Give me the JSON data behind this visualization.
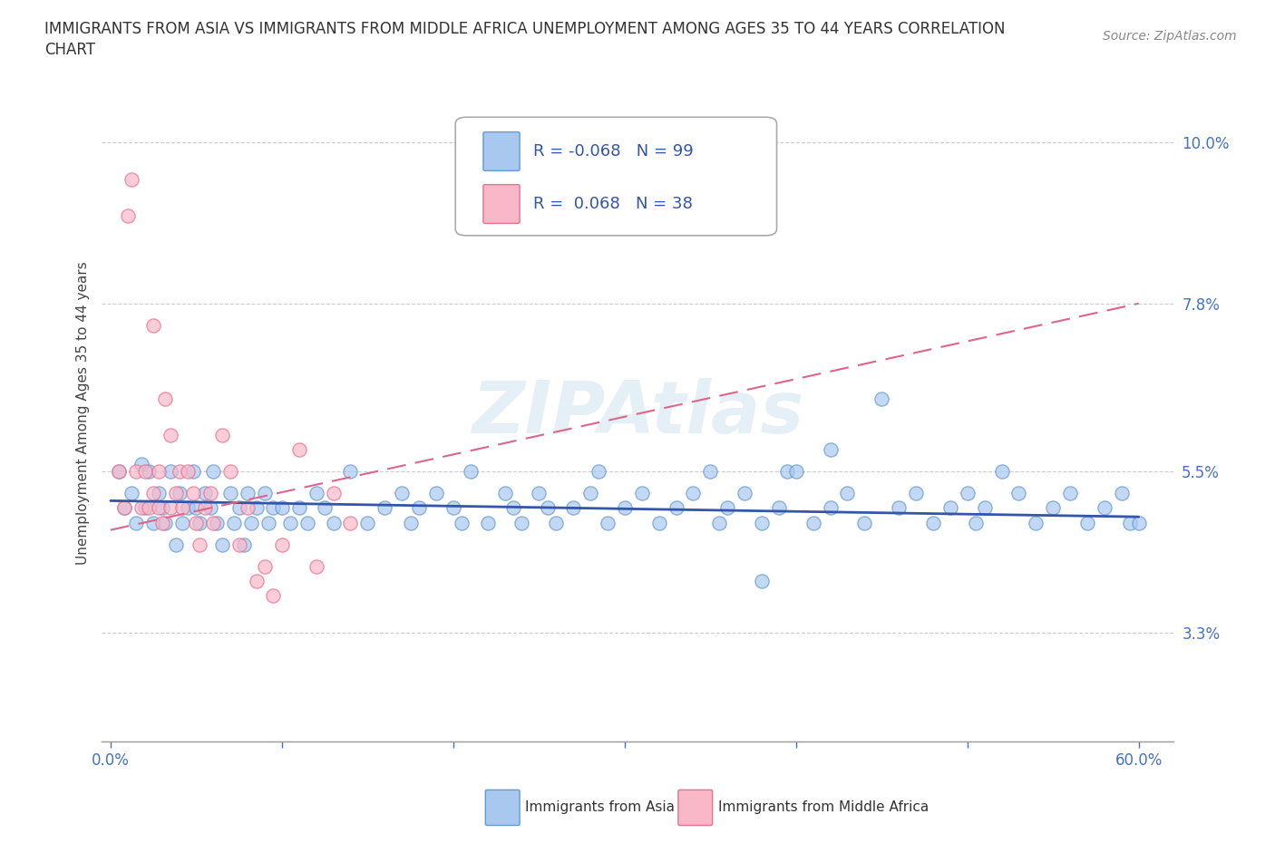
{
  "title_line1": "IMMIGRANTS FROM ASIA VS IMMIGRANTS FROM MIDDLE AFRICA UNEMPLOYMENT AMONG AGES 35 TO 44 YEARS CORRELATION",
  "title_line2": "CHART",
  "source": "Source: ZipAtlas.com",
  "ylabel": "Unemployment Among Ages 35 to 44 years",
  "xlim": [
    -0.005,
    0.62
  ],
  "ylim": [
    0.018,
    0.108
  ],
  "yticks": [
    0.033,
    0.055,
    0.078,
    0.1
  ],
  "ytick_labels": [
    "3.3%",
    "5.5%",
    "7.8%",
    "10.0%"
  ],
  "xticks": [
    0.0,
    0.1,
    0.2,
    0.3,
    0.4,
    0.5,
    0.6
  ],
  "color_asia": "#A8C8F0",
  "color_asia_edge": "#6699CC",
  "color_africa": "#F8B8C8",
  "color_africa_edge": "#E87090",
  "line_color_asia": "#3355AA",
  "line_color_africa": "#DD6688",
  "R_asia": -0.068,
  "N_asia": 99,
  "R_africa": 0.068,
  "N_africa": 38,
  "legend_label_asia": "Immigrants from Asia",
  "legend_label_africa": "Immigrants from Middle Africa",
  "watermark": "ZIPAtlas",
  "asia_x": [
    0.005,
    0.008,
    0.012,
    0.015,
    0.018,
    0.02,
    0.022,
    0.025,
    0.028,
    0.03,
    0.032,
    0.035,
    0.038,
    0.04,
    0.042,
    0.045,
    0.048,
    0.05,
    0.052,
    0.055,
    0.058,
    0.06,
    0.062,
    0.065,
    0.07,
    0.072,
    0.075,
    0.078,
    0.08,
    0.082,
    0.085,
    0.09,
    0.092,
    0.095,
    0.1,
    0.105,
    0.11,
    0.115,
    0.12,
    0.125,
    0.13,
    0.14,
    0.15,
    0.16,
    0.17,
    0.175,
    0.18,
    0.19,
    0.2,
    0.205,
    0.21,
    0.22,
    0.23,
    0.235,
    0.24,
    0.25,
    0.255,
    0.26,
    0.27,
    0.28,
    0.285,
    0.29,
    0.3,
    0.31,
    0.32,
    0.33,
    0.34,
    0.35,
    0.355,
    0.36,
    0.37,
    0.38,
    0.39,
    0.395,
    0.4,
    0.41,
    0.42,
    0.43,
    0.44,
    0.45,
    0.46,
    0.47,
    0.48,
    0.49,
    0.5,
    0.505,
    0.51,
    0.52,
    0.53,
    0.54,
    0.55,
    0.56,
    0.57,
    0.58,
    0.59,
    0.595,
    0.6,
    0.38,
    0.42
  ],
  "asia_y": [
    0.055,
    0.05,
    0.052,
    0.048,
    0.056,
    0.05,
    0.055,
    0.048,
    0.052,
    0.05,
    0.048,
    0.055,
    0.045,
    0.052,
    0.048,
    0.05,
    0.055,
    0.05,
    0.048,
    0.052,
    0.05,
    0.055,
    0.048,
    0.045,
    0.052,
    0.048,
    0.05,
    0.045,
    0.052,
    0.048,
    0.05,
    0.052,
    0.048,
    0.05,
    0.05,
    0.048,
    0.05,
    0.048,
    0.052,
    0.05,
    0.048,
    0.055,
    0.048,
    0.05,
    0.052,
    0.048,
    0.05,
    0.052,
    0.05,
    0.048,
    0.055,
    0.048,
    0.052,
    0.05,
    0.048,
    0.052,
    0.05,
    0.048,
    0.05,
    0.052,
    0.055,
    0.048,
    0.05,
    0.052,
    0.048,
    0.05,
    0.052,
    0.055,
    0.048,
    0.05,
    0.052,
    0.048,
    0.05,
    0.055,
    0.055,
    0.048,
    0.05,
    0.052,
    0.048,
    0.065,
    0.05,
    0.052,
    0.048,
    0.05,
    0.052,
    0.048,
    0.05,
    0.055,
    0.052,
    0.048,
    0.05,
    0.052,
    0.048,
    0.05,
    0.052,
    0.048,
    0.048,
    0.04,
    0.058
  ],
  "africa_x": [
    0.005,
    0.008,
    0.01,
    0.012,
    0.015,
    0.018,
    0.02,
    0.022,
    0.025,
    0.025,
    0.028,
    0.028,
    0.03,
    0.032,
    0.035,
    0.035,
    0.038,
    0.04,
    0.042,
    0.045,
    0.048,
    0.05,
    0.052,
    0.055,
    0.058,
    0.06,
    0.065,
    0.07,
    0.075,
    0.08,
    0.085,
    0.09,
    0.095,
    0.1,
    0.11,
    0.12,
    0.13,
    0.14
  ],
  "africa_y": [
    0.055,
    0.05,
    0.09,
    0.095,
    0.055,
    0.05,
    0.055,
    0.05,
    0.075,
    0.052,
    0.05,
    0.055,
    0.048,
    0.065,
    0.06,
    0.05,
    0.052,
    0.055,
    0.05,
    0.055,
    0.052,
    0.048,
    0.045,
    0.05,
    0.052,
    0.048,
    0.06,
    0.055,
    0.045,
    0.05,
    0.04,
    0.042,
    0.038,
    0.045,
    0.058,
    0.042,
    0.052,
    0.048
  ],
  "blue_line_x": [
    0.0,
    0.6
  ],
  "blue_line_y": [
    0.051,
    0.0488
  ],
  "pink_line_x": [
    0.0,
    0.6
  ],
  "pink_line_y": [
    0.047,
    0.078
  ]
}
